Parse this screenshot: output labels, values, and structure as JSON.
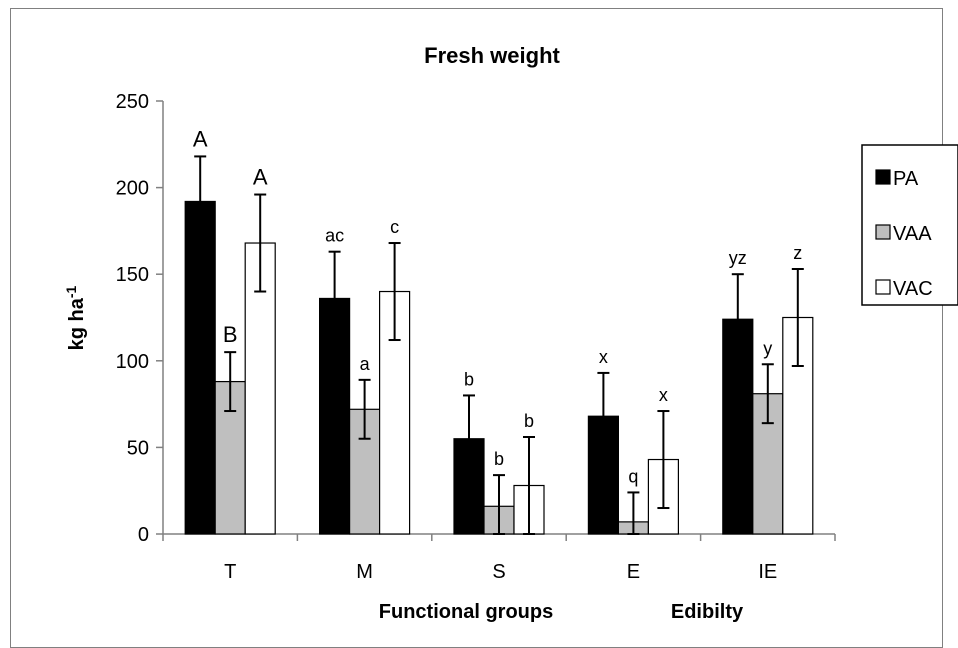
{
  "chart_data": {
    "type": "bar",
    "title": "Fresh weight",
    "ylabel": "kg ha-1",
    "ylabel_parts": {
      "base": "kg ha",
      "sup": "-1"
    },
    "xlabel_groups": [
      "Functional groups",
      "Edibilty"
    ],
    "ylim": [
      0,
      250
    ],
    "yticks": [
      0,
      50,
      100,
      150,
      200,
      250
    ],
    "ytick_labels": [
      "0",
      "50",
      "100",
      "150",
      "200",
      "250"
    ],
    "categories": [
      "T",
      "M",
      "S",
      "E",
      "IE"
    ],
    "series": [
      {
        "name": "PA",
        "color": "#000000",
        "values": [
          192,
          136,
          55,
          68,
          124
        ],
        "errors": [
          26,
          27,
          25,
          25,
          26
        ],
        "letters": [
          "A",
          "ac",
          "b",
          "x",
          "yz"
        ]
      },
      {
        "name": "VAA",
        "color": "#bfbfbf",
        "values": [
          88,
          72,
          16,
          7,
          81
        ],
        "errors": [
          17,
          17,
          18,
          17,
          17
        ],
        "letters": [
          "B",
          "a",
          "b",
          "q",
          "y"
        ]
      },
      {
        "name": "VAC",
        "color": "#ffffff",
        "values": [
          168,
          140,
          28,
          43,
          125
        ],
        "errors": [
          28,
          28,
          28,
          28,
          28
        ],
        "letters": [
          "A",
          "c",
          "b",
          "x",
          "z"
        ]
      }
    ],
    "legend_position": "right",
    "grid": false
  }
}
